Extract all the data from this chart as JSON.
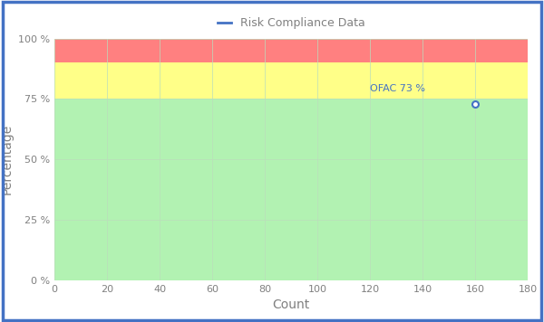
{
  "title": "Risk Compliance Data",
  "xlabel": "Count",
  "ylabel": "Percentage",
  "xlim": [
    0,
    180
  ],
  "ylim": [
    0,
    100
  ],
  "xticks": [
    0,
    20,
    40,
    60,
    80,
    100,
    120,
    140,
    160,
    180
  ],
  "yticks": [
    0,
    25,
    50,
    75,
    100
  ],
  "ytick_labels": [
    "0 %",
    "25 %",
    "50 %",
    "75 %",
    "100 %"
  ],
  "green_band": [
    0,
    75
  ],
  "yellow_band": [
    75,
    90
  ],
  "red_band": [
    90,
    100
  ],
  "green_color": "#b2f2b2",
  "yellow_color": "#ffff88",
  "red_color": "#ff8080",
  "grid_color": "#bbddbb",
  "border_color": "#4472c4",
  "data_point_x": 160,
  "data_point_y": 73,
  "data_point_label": "OFAC 73 %",
  "data_point_color": "#4472c4",
  "legend_label": "Risk Compliance Data",
  "legend_line_color": "#4472c4",
  "background_color": "#ffffff",
  "title_color": "#808080",
  "axis_label_color": "#808080",
  "tick_label_color": "#808080",
  "title_fontsize": 9,
  "axis_label_fontsize": 10,
  "tick_fontsize": 8,
  "annotation_fontsize": 8,
  "annotation_color": "#4472c4"
}
